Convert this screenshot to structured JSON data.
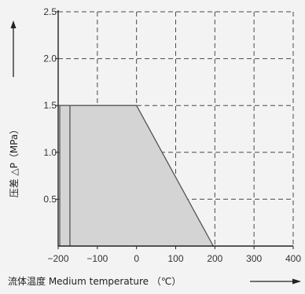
{
  "chart_data": {
    "type": "area",
    "title": "",
    "xlabel": "流体温度 Medium temperature （℃）",
    "ylabel": "压差 △P（MPa）",
    "xlim": [
      -200,
      400
    ],
    "ylim": [
      0,
      2.5
    ],
    "x_ticks": [
      -200,
      -100,
      0,
      100,
      200,
      300,
      400
    ],
    "y_ticks": [
      0.5,
      1.0,
      1.5,
      2.0,
      2.5
    ],
    "x_tick_labels": [
      "−200",
      "−100",
      "0",
      "100",
      "200",
      "300",
      "400"
    ],
    "y_tick_labels": [
      "0.5",
      "1.0",
      "1.5",
      "2.0",
      "2.5"
    ],
    "grid": true,
    "grid_style": "dashed",
    "series": [
      {
        "x": [
          -196,
          -170,
          0,
          196
        ],
        "y": [
          1.5,
          1.5,
          1.5,
          0
        ],
        "fill_color": "#d4d4d4",
        "line_color": "#555555"
      }
    ],
    "x_arrow": true,
    "y_arrow": true
  }
}
